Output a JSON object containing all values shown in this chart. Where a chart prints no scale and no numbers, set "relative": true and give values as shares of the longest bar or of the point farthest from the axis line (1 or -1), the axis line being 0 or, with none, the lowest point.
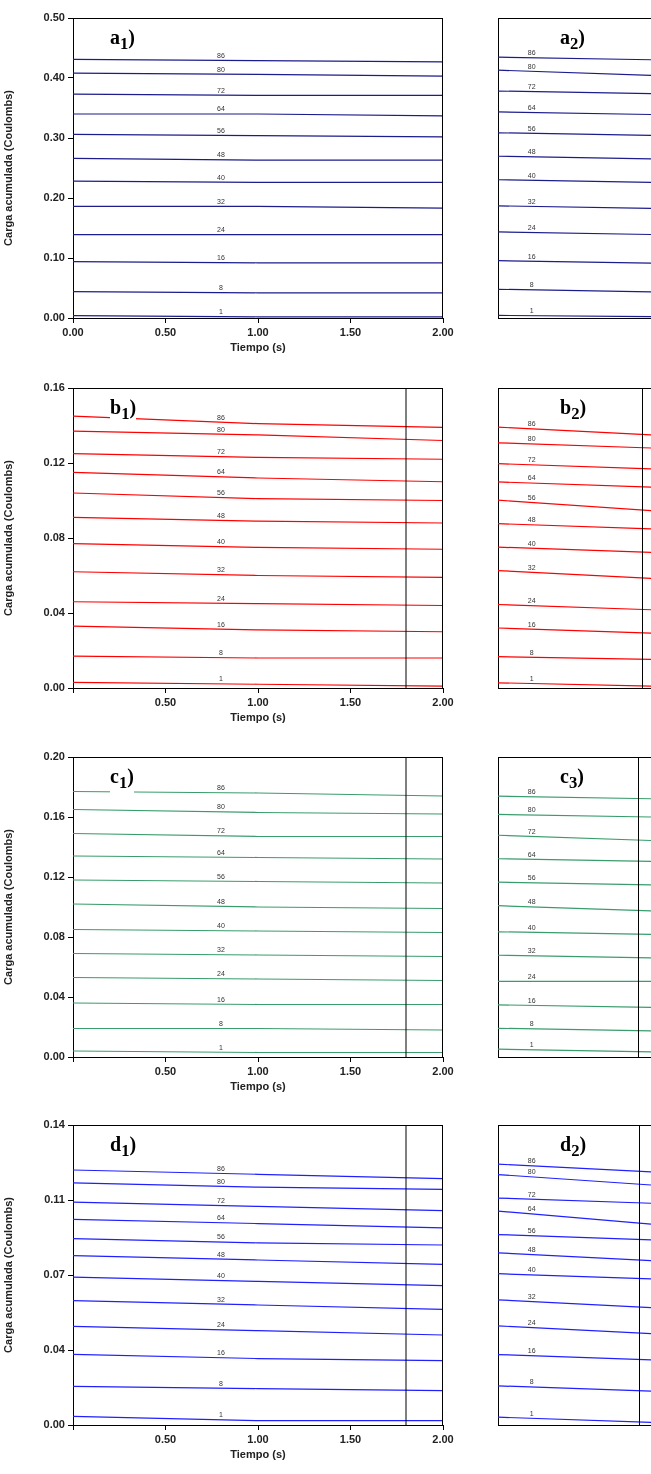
{
  "chart_data": [
    {
      "type": "line",
      "annotations": [
        "a$_{1}$)"
      ],
      "xlabel": "Tiempo (s)",
      "ylabel": "Carga acumulada (Coulombs)",
      "xlim": [
        0,
        2
      ],
      "xticks": [
        {
          "value": 0,
          "label": "0.00"
        },
        {
          "value": 0.5,
          "label": "0.50"
        },
        {
          "value": 1,
          "label": "1.00"
        },
        {
          "value": 1.5,
          "label": "1.50"
        },
        {
          "value": 2,
          "label": "2.00"
        }
      ],
      "ylim": [
        0,
        0.5
      ],
      "yticks": [
        {
          "value": 0,
          "label": "0.00"
        },
        {
          "value": 0.1,
          "label": "0.10"
        },
        {
          "value": 0.2,
          "label": "0.20"
        },
        {
          "value": 0.3,
          "label": "0.30"
        },
        {
          "value": 0.4,
          "label": "0.40"
        },
        {
          "value": 0.5,
          "label": "0.50"
        }
      ],
      "x": [
        0,
        1,
        2
      ],
      "series": [
        {
          "name": "86",
          "color": "#1c1c8c",
          "values": [
            0.431,
            0.429,
            0.427
          ]
        },
        {
          "name": "80",
          "color": "#1c1c8c",
          "values": [
            0.408,
            0.406,
            0.403
          ]
        },
        {
          "name": "72",
          "color": "#1c1c8c",
          "values": [
            0.373,
            0.371,
            0.371
          ]
        },
        {
          "name": "64",
          "color": "#1c1c8c",
          "values": [
            0.34,
            0.34,
            0.337
          ]
        },
        {
          "name": "56",
          "color": "#1c1c8c",
          "values": [
            0.306,
            0.304,
            0.302
          ]
        },
        {
          "name": "48",
          "color": "#1c1c8c",
          "values": [
            0.266,
            0.263,
            0.263
          ]
        },
        {
          "name": "40",
          "color": "#1c1c8c",
          "values": [
            0.228,
            0.226,
            0.226
          ]
        },
        {
          "name": "32",
          "color": "#1c1c8c",
          "values": [
            0.186,
            0.186,
            0.183
          ]
        },
        {
          "name": "24",
          "color": "#1c1c8c",
          "values": [
            0.139,
            0.139,
            0.139
          ]
        },
        {
          "name": "16",
          "color": "#1c1c8c",
          "values": [
            0.094,
            0.092,
            0.092
          ]
        },
        {
          "name": "8",
          "color": "#1c1c8c",
          "values": [
            0.044,
            0.042,
            0.042
          ]
        },
        {
          "name": "1",
          "color": "#1c1c8c",
          "values": [
            0.004,
            0.002,
            0.002
          ]
        }
      ]
    },
    {
      "type": "line",
      "annotations": [
        "a$_{2}$)"
      ],
      "relative": true,
      "categories": [
        null,
        null
      ],
      "series": [
        {
          "name": "86",
          "color": "#1c1c8c",
          "values": [
            1,
            0.99
          ]
        },
        {
          "name": "80",
          "color": "#1c1c8c",
          "values": [
            0.95,
            0.93
          ]
        },
        {
          "name": "72",
          "color": "#1c1c8c",
          "values": [
            0.87,
            0.86
          ]
        },
        {
          "name": "64",
          "color": "#1c1c8c",
          "values": [
            0.79,
            0.78
          ]
        },
        {
          "name": "56",
          "color": "#1c1c8c",
          "values": [
            0.71,
            0.7
          ]
        },
        {
          "name": "48",
          "color": "#1c1c8c",
          "values": [
            0.62,
            0.61
          ]
        },
        {
          "name": "40",
          "color": "#1c1c8c",
          "values": [
            0.53,
            0.52
          ]
        },
        {
          "name": "32",
          "color": "#1c1c8c",
          "values": [
            0.43,
            0.42
          ]
        },
        {
          "name": "24",
          "color": "#1c1c8c",
          "values": [
            0.33,
            0.32
          ]
        },
        {
          "name": "16",
          "color": "#1c1c8c",
          "values": [
            0.22,
            0.21
          ]
        },
        {
          "name": "8",
          "color": "#1c1c8c",
          "values": [
            0.11,
            0.1
          ]
        },
        {
          "name": "1",
          "color": "#1c1c8c",
          "values": [
            0.01,
            0.005
          ]
        }
      ]
    },
    {
      "type": "line",
      "annotations": [
        "b$_{1}$)"
      ],
      "xlabel": "Tiempo (s)",
      "ylabel": "Carga acumulada (Coulombs)",
      "xlim": [
        0,
        2
      ],
      "xticks": [
        {
          "value": 0,
          "label": null
        },
        {
          "value": 0.5,
          "label": "0.50"
        },
        {
          "value": 1,
          "label": "1.00"
        },
        {
          "value": 1.5,
          "label": "1.50"
        },
        {
          "value": 2,
          "label": "2.00"
        }
      ],
      "ylim": [
        0,
        0.16
      ],
      "yticks": [
        {
          "value": 0,
          "label": "0.00"
        },
        {
          "value": 0.04,
          "label": "0.04"
        },
        {
          "value": 0.08,
          "label": "0.08"
        },
        {
          "value": 0.12,
          "label": "0.12"
        },
        {
          "value": 0.16,
          "label": "0.16"
        }
      ],
      "ref_lines": [
        {
          "axis": "x",
          "value": 1.8,
          "color": "#000000"
        }
      ],
      "x": [
        0,
        1,
        2
      ],
      "series": [
        {
          "name": "86",
          "color": "#ff0000",
          "values": [
            0.145,
            0.141,
            0.139
          ]
        },
        {
          "name": "80",
          "color": "#ff0000",
          "values": [
            0.137,
            0.135,
            0.132
          ]
        },
        {
          "name": "72",
          "color": "#ff0000",
          "values": [
            0.125,
            0.123,
            0.122
          ]
        },
        {
          "name": "64",
          "color": "#ff0000",
          "values": [
            0.115,
            0.112,
            0.11
          ]
        },
        {
          "name": "56",
          "color": "#ff0000",
          "values": [
            0.104,
            0.101,
            0.1
          ]
        },
        {
          "name": "48",
          "color": "#ff0000",
          "values": [
            0.091,
            0.089,
            0.088
          ]
        },
        {
          "name": "40",
          "color": "#ff0000",
          "values": [
            0.077,
            0.075,
            0.074
          ]
        },
        {
          "name": "32",
          "color": "#ff0000",
          "values": [
            0.062,
            0.06,
            0.059
          ]
        },
        {
          "name": "24",
          "color": "#ff0000",
          "values": [
            0.046,
            0.045,
            0.044
          ]
        },
        {
          "name": "16",
          "color": "#ff0000",
          "values": [
            0.033,
            0.031,
            0.03
          ]
        },
        {
          "name": "8",
          "color": "#ff0000",
          "values": [
            0.017,
            0.016,
            0.016
          ]
        },
        {
          "name": "1",
          "color": "#ff0000",
          "values": [
            0.003,
            0.002,
            0.001
          ]
        }
      ]
    },
    {
      "type": "line",
      "annotations": [
        "b$_{2}$)"
      ],
      "relative": true,
      "categories": [
        null,
        null
      ],
      "series": [
        {
          "name": "86",
          "color": "#ff0000",
          "values": [
            1,
            0.97
          ]
        },
        {
          "name": "80",
          "color": "#ff0000",
          "values": [
            0.94,
            0.92
          ]
        },
        {
          "name": "72",
          "color": "#ff0000",
          "values": [
            0.86,
            0.84
          ]
        },
        {
          "name": "64",
          "color": "#ff0000",
          "values": [
            0.79,
            0.77
          ]
        },
        {
          "name": "56",
          "color": "#ff0000",
          "values": [
            0.72,
            0.68
          ]
        },
        {
          "name": "48",
          "color": "#ff0000",
          "values": [
            0.63,
            0.61
          ]
        },
        {
          "name": "40",
          "color": "#ff0000",
          "values": [
            0.54,
            0.52
          ]
        },
        {
          "name": "32",
          "color": "#ff0000",
          "values": [
            0.45,
            0.42
          ]
        },
        {
          "name": "24",
          "color": "#ff0000",
          "values": [
            0.32,
            0.3
          ]
        },
        {
          "name": "16",
          "color": "#ff0000",
          "values": [
            0.23,
            0.21
          ]
        },
        {
          "name": "8",
          "color": "#ff0000",
          "values": [
            0.12,
            0.11
          ]
        },
        {
          "name": "1",
          "color": "#ff0000",
          "values": [
            0.02,
            0.007
          ]
        }
      ]
    },
    {
      "type": "line",
      "annotations": [
        "c$_{1}$)"
      ],
      "xlabel": "Tiempo (s)",
      "ylabel": "Carga acumulada (Coulombs)",
      "xlim": [
        0,
        2
      ],
      "xticks": [
        {
          "value": 0,
          "label": null
        },
        {
          "value": 0.5,
          "label": "0.50"
        },
        {
          "value": 1,
          "label": "1.00"
        },
        {
          "value": 1.5,
          "label": "1.50"
        },
        {
          "value": 2,
          "label": "2.00"
        }
      ],
      "ylim": [
        0,
        0.2
      ],
      "yticks": [
        {
          "value": 0,
          "label": "0.00"
        },
        {
          "value": 0.04,
          "label": "0.04"
        },
        {
          "value": 0.08,
          "label": "0.08"
        },
        {
          "value": 0.12,
          "label": "0.12"
        },
        {
          "value": 0.16,
          "label": "0.16"
        },
        {
          "value": 0.2,
          "label": "0.20"
        }
      ],
      "ref_lines": [
        {
          "axis": "x",
          "value": 1.8,
          "color": "#000000"
        }
      ],
      "x": [
        0,
        1,
        2
      ],
      "series": [
        {
          "name": "86",
          "color": "#3a9c6c",
          "values": [
            0.177,
            0.176,
            0.174
          ]
        },
        {
          "name": "80",
          "color": "#3a9c6c",
          "values": [
            0.165,
            0.163,
            0.162
          ]
        },
        {
          "name": "72",
          "color": "#3a9c6c",
          "values": [
            0.149,
            0.147,
            0.147
          ]
        },
        {
          "name": "64",
          "color": "#3a9c6c",
          "values": [
            0.134,
            0.133,
            0.132
          ]
        },
        {
          "name": "56",
          "color": "#3a9c6c",
          "values": [
            0.118,
            0.117,
            0.116
          ]
        },
        {
          "name": "48",
          "color": "#3a9c6c",
          "values": [
            0.102,
            0.1,
            0.099
          ]
        },
        {
          "name": "40",
          "color": "#3a9c6c",
          "values": [
            0.085,
            0.084,
            0.083
          ]
        },
        {
          "name": "32",
          "color": "#3a9c6c",
          "values": [
            0.069,
            0.068,
            0.067
          ]
        },
        {
          "name": "24",
          "color": "#3a9c6c",
          "values": [
            0.053,
            0.052,
            0.051
          ]
        },
        {
          "name": "16",
          "color": "#3a9c6c",
          "values": [
            0.036,
            0.035,
            0.035
          ]
        },
        {
          "name": "8",
          "color": "#3a9c6c",
          "values": [
            0.019,
            0.019,
            0.018
          ]
        },
        {
          "name": "1",
          "color": "#3a9c6c",
          "values": [
            0.004,
            0.003,
            0.003
          ]
        }
      ]
    },
    {
      "type": "line",
      "annotations": [
        "c$_{3}$)"
      ],
      "relative": true,
      "categories": [
        null,
        null
      ],
      "series": [
        {
          "name": "86",
          "color": "#3a9c6c",
          "values": [
            1,
            0.99
          ]
        },
        {
          "name": "80",
          "color": "#3a9c6c",
          "values": [
            0.93,
            0.92
          ]
        },
        {
          "name": "72",
          "color": "#3a9c6c",
          "values": [
            0.85,
            0.83
          ]
        },
        {
          "name": "64",
          "color": "#3a9c6c",
          "values": [
            0.76,
            0.75
          ]
        },
        {
          "name": "56",
          "color": "#3a9c6c",
          "values": [
            0.67,
            0.66
          ]
        },
        {
          "name": "48",
          "color": "#3a9c6c",
          "values": [
            0.58,
            0.56
          ]
        },
        {
          "name": "40",
          "color": "#3a9c6c",
          "values": [
            0.48,
            0.47
          ]
        },
        {
          "name": "32",
          "color": "#3a9c6c",
          "values": [
            0.39,
            0.38
          ]
        },
        {
          "name": "24",
          "color": "#3a9c6c",
          "values": [
            0.29,
            0.29
          ]
        },
        {
          "name": "16",
          "color": "#3a9c6c",
          "values": [
            0.2,
            0.19
          ]
        },
        {
          "name": "8",
          "color": "#3a9c6c",
          "values": [
            0.11,
            0.1
          ]
        },
        {
          "name": "1",
          "color": "#3a9c6c",
          "values": [
            0.03,
            0.02
          ]
        }
      ]
    },
    {
      "type": "line",
      "annotations": [
        "d$_{1}$)"
      ],
      "xlabel": "Tiempo (s)",
      "ylabel": "Carga acumulada (Coulombs)",
      "xlim": [
        0,
        2
      ],
      "xticks": [
        {
          "value": 0,
          "label": null
        },
        {
          "value": 0.5,
          "label": "0.50"
        },
        {
          "value": 1,
          "label": "1.00"
        },
        {
          "value": 1.5,
          "label": "1.50"
        },
        {
          "value": 2,
          "label": "2.00"
        }
      ],
      "ylim": [
        0,
        0.14
      ],
      "yticks": [
        {
          "value": 0,
          "label": "0.00"
        },
        {
          "value": 0.035,
          "label": "0.04"
        },
        {
          "value": 0.07,
          "label": "0.07"
        },
        {
          "value": 0.105,
          "label": "0.11"
        },
        {
          "value": 0.14,
          "label": "0.14"
        }
      ],
      "ref_lines": [
        {
          "axis": "x",
          "value": 1.8,
          "color": "#000000"
        }
      ],
      "x": [
        0,
        1,
        2
      ],
      "series": [
        {
          "name": "86",
          "color": "#1f1fff",
          "values": [
            0.119,
            0.117,
            0.115
          ]
        },
        {
          "name": "80",
          "color": "#1f1fff",
          "values": [
            0.113,
            0.111,
            0.11
          ]
        },
        {
          "name": "72",
          "color": "#1f1fff",
          "values": [
            0.104,
            0.102,
            0.1
          ]
        },
        {
          "name": "64",
          "color": "#1f1fff",
          "values": [
            0.096,
            0.094,
            0.092
          ]
        },
        {
          "name": "56",
          "color": "#1f1fff",
          "values": [
            0.087,
            0.085,
            0.084
          ]
        },
        {
          "name": "48",
          "color": "#1f1fff",
          "values": [
            0.079,
            0.077,
            0.075
          ]
        },
        {
          "name": "40",
          "color": "#1f1fff",
          "values": [
            0.069,
            0.067,
            0.065
          ]
        },
        {
          "name": "32",
          "color": "#1f1fff",
          "values": [
            0.058,
            0.056,
            0.054
          ]
        },
        {
          "name": "24",
          "color": "#1f1fff",
          "values": [
            0.046,
            0.044,
            0.042
          ]
        },
        {
          "name": "16",
          "color": "#1f1fff",
          "values": [
            0.033,
            0.031,
            0.03
          ]
        },
        {
          "name": "8",
          "color": "#1f1fff",
          "values": [
            0.018,
            0.017,
            0.016
          ]
        },
        {
          "name": "1",
          "color": "#1f1fff",
          "values": [
            0.004,
            0.002,
            0.002
          ]
        }
      ]
    },
    {
      "type": "line",
      "annotations": [
        "d$_{2}$)"
      ],
      "relative": true,
      "categories": [
        null,
        null
      ],
      "series": [
        {
          "name": "86",
          "color": "#1f1fff",
          "values": [
            1,
            0.97
          ]
        },
        {
          "name": "80",
          "color": "#1f1fff",
          "values": [
            0.96,
            0.92
          ]
        },
        {
          "name": "72",
          "color": "#1f1fff",
          "values": [
            0.87,
            0.85
          ]
        },
        {
          "name": "64",
          "color": "#1f1fff",
          "values": [
            0.82,
            0.77
          ]
        },
        {
          "name": "56",
          "color": "#1f1fff",
          "values": [
            0.73,
            0.71
          ]
        },
        {
          "name": "48",
          "color": "#1f1fff",
          "values": [
            0.66,
            0.63
          ]
        },
        {
          "name": "40",
          "color": "#1f1fff",
          "values": [
            0.58,
            0.56
          ]
        },
        {
          "name": "32",
          "color": "#1f1fff",
          "values": [
            0.48,
            0.45
          ]
        },
        {
          "name": "24",
          "color": "#1f1fff",
          "values": [
            0.38,
            0.35
          ]
        },
        {
          "name": "16",
          "color": "#1f1fff",
          "values": [
            0.27,
            0.25
          ]
        },
        {
          "name": "8",
          "color": "#1f1fff",
          "values": [
            0.15,
            0.13
          ]
        },
        {
          "name": "1",
          "color": "#1f1fff",
          "values": [
            0.03,
            0.01
          ]
        }
      ]
    }
  ]
}
